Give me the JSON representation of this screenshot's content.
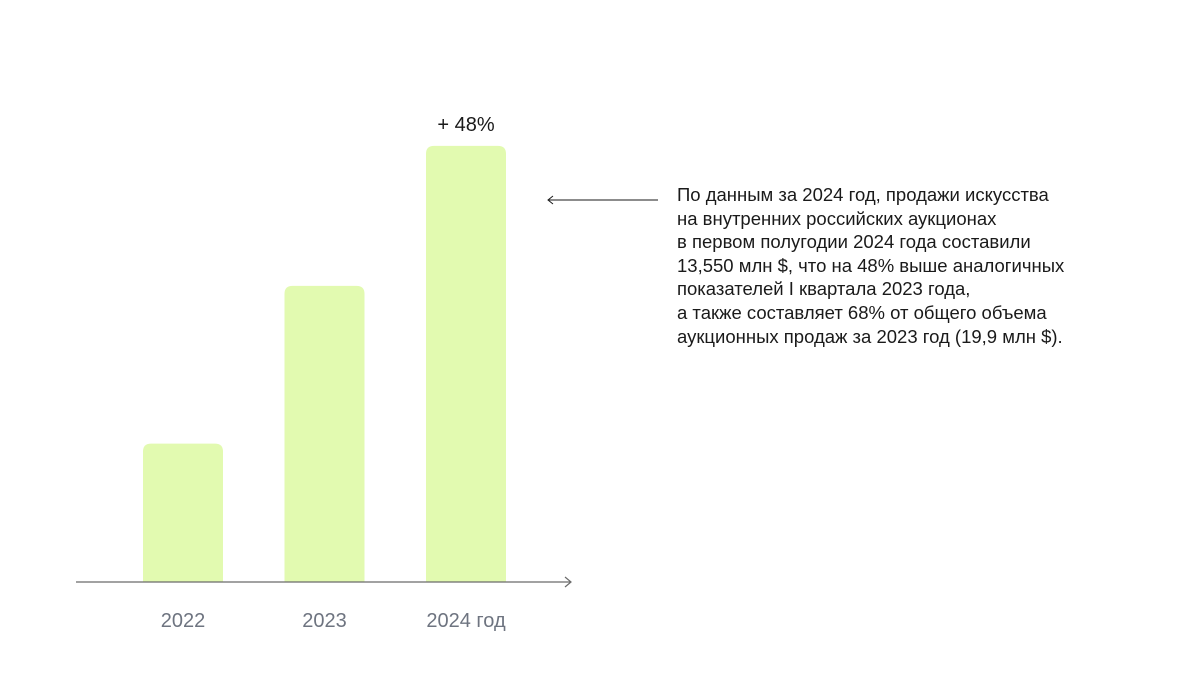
{
  "chart_data": {
    "type": "bar",
    "title": "",
    "xlabel": "",
    "ylabel": "",
    "categories": [
      "2022",
      "2023",
      "2024 год"
    ],
    "values": [
      4.3,
      9.2,
      13.55
    ],
    "units": "млн $ (relative, no y-axis shown)",
    "ylim": [
      0,
      16
    ],
    "grid": false,
    "bar_color": "#e2fab0",
    "annotations": [
      {
        "category": "2024 год",
        "text": "+ 48%"
      }
    ]
  },
  "note": {
    "lines": [
      "По данным за 2024 год, продажи искусства",
      "на внутренних российских аукционах",
      "в первом полугодии 2024 года составили",
      "13,550 млн $, что на 48% выше аналогичных",
      "показателей I квартала 2023 года,",
      "а также составляет 68% от общего объема",
      "аукционных продаж за 2023 год (19,9 млн $)."
    ]
  }
}
